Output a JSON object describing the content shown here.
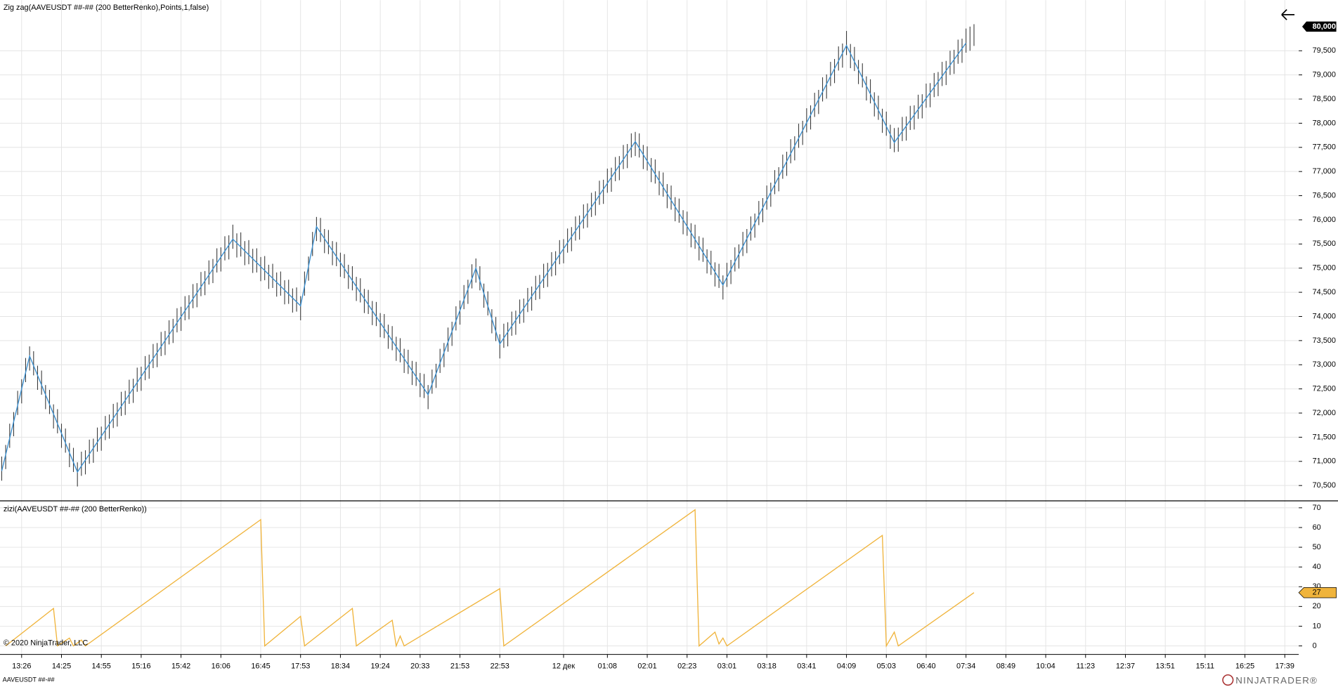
{
  "footer": {
    "copyright": "© 2020 NinjaTrader, LLC",
    "instrument": "AAVEUSDT ##-##",
    "brand": "NINJATRADER®"
  },
  "chart_data": [
    {
      "type": "ohlc",
      "title": "Zig zag(AAVEUSDT ##-## (200 BetterRenko),Points,1,false)",
      "bar_color": "#3a3a3a",
      "high": [
        71100,
        71340,
        71780,
        72020,
        72460,
        72700,
        73140,
        73380,
        73280,
        72980,
        72880,
        72580,
        72480,
        72180,
        72080,
        71780,
        71680,
        71380,
        71280,
        70980,
        71200,
        71230,
        71450,
        71470,
        71700,
        71720,
        71940,
        71970,
        72190,
        72220,
        72440,
        72460,
        72690,
        72710,
        72940,
        72960,
        73180,
        73210,
        73430,
        73450,
        73680,
        73700,
        73920,
        73950,
        74170,
        74200,
        74420,
        74440,
        74670,
        74690,
        74920,
        74940,
        75160,
        75190,
        75410,
        75430,
        75660,
        75680,
        75900,
        75720,
        75740,
        75560,
        75580,
        75400,
        75410,
        75230,
        75250,
        75070,
        75090,
        74910,
        74930,
        74750,
        74760,
        74580,
        74600,
        74420,
        74930,
        75240,
        75750,
        76060,
        76040,
        75810,
        75790,
        75560,
        75540,
        75320,
        75290,
        75070,
        75040,
        74820,
        74790,
        74570,
        74550,
        74320,
        74300,
        74070,
        74050,
        73830,
        73800,
        73580,
        73550,
        73330,
        73310,
        73080,
        73060,
        72830,
        72810,
        72580,
        72900,
        73020,
        73330,
        73450,
        73770,
        73890,
        74210,
        74330,
        74650,
        74760,
        75080,
        75200,
        75040,
        74680,
        74520,
        74150,
        73990,
        73630,
        73850,
        73880,
        74100,
        74120,
        74350,
        74370,
        74590,
        74620,
        74840,
        74860,
        75090,
        75110,
        75330,
        75350,
        75580,
        75600,
        75820,
        75850,
        76070,
        76090,
        76320,
        76340,
        76560,
        76590,
        76810,
        76830,
        77060,
        77080,
        77300,
        77320,
        77550,
        77570,
        77790,
        77820,
        77790,
        77550,
        77520,
        77280,
        77250,
        77010,
        76980,
        76740,
        76710,
        76470,
        76440,
        76200,
        76170,
        75930,
        75900,
        75660,
        75630,
        75390,
        75360,
        75120,
        75090,
        74850,
        75110,
        75170,
        75430,
        75490,
        75750,
        75810,
        76070,
        76130,
        76390,
        76450,
        76710,
        76770,
        77030,
        77090,
        77350,
        77410,
        77670,
        77730,
        77990,
        78050,
        78310,
        78370,
        78630,
        78690,
        78950,
        79010,
        79270,
        79330,
        79590,
        79650,
        79910,
        79640,
        79580,
        79310,
        79240,
        78970,
        78910,
        78640,
        78570,
        78300,
        78240,
        77970,
        77900,
        77910,
        78130,
        78140,
        78360,
        78370,
        78590,
        78600,
        78820,
        78830,
        79040,
        79060,
        79270,
        79290,
        79500,
        79520,
        79730,
        79750,
        79960,
        80000,
        80050
      ],
      "low": [
        70600,
        70840,
        71280,
        71520,
        71960,
        72200,
        72640,
        72880,
        72780,
        72480,
        72380,
        72080,
        71980,
        71680,
        71580,
        71280,
        71180,
        70880,
        70780,
        70480,
        70700,
        70730,
        70950,
        70970,
        71200,
        71220,
        71440,
        71470,
        71690,
        71720,
        71940,
        71960,
        72190,
        72210,
        72440,
        72460,
        72680,
        72710,
        72930,
        72950,
        73180,
        73200,
        73420,
        73450,
        73670,
        73700,
        73920,
        73940,
        74170,
        74190,
        74420,
        74440,
        74660,
        74690,
        74910,
        74930,
        75160,
        75180,
        75400,
        75220,
        75240,
        75060,
        75080,
        74900,
        74910,
        74730,
        74750,
        74570,
        74590,
        74410,
        74430,
        74250,
        74260,
        74080,
        74100,
        73920,
        74430,
        74740,
        75250,
        75560,
        75540,
        75310,
        75290,
        75060,
        75040,
        74820,
        74790,
        74570,
        74540,
        74320,
        74290,
        74070,
        74050,
        73820,
        73800,
        73570,
        73550,
        73330,
        73300,
        73080,
        73050,
        72830,
        72810,
        72580,
        72560,
        72330,
        72310,
        72080,
        72400,
        72520,
        72830,
        72950,
        73270,
        73390,
        73710,
        73830,
        74150,
        74260,
        74580,
        74700,
        74540,
        74180,
        74020,
        73650,
        73490,
        73130,
        73350,
        73380,
        73600,
        73620,
        73850,
        73870,
        74090,
        74120,
        74340,
        74360,
        74590,
        74610,
        74830,
        74850,
        75080,
        75100,
        75320,
        75350,
        75570,
        75590,
        75820,
        75840,
        76060,
        76090,
        76310,
        76330,
        76560,
        76580,
        76800,
        76820,
        77050,
        77070,
        77290,
        77320,
        77290,
        77050,
        77020,
        76780,
        76750,
        76510,
        76480,
        76240,
        76210,
        75970,
        75940,
        75700,
        75670,
        75430,
        75400,
        75160,
        75130,
        74890,
        74860,
        74620,
        74590,
        74350,
        74610,
        74670,
        74930,
        74990,
        75250,
        75310,
        75570,
        75630,
        75890,
        75950,
        76210,
        76270,
        76530,
        76590,
        76850,
        76910,
        77170,
        77230,
        77490,
        77550,
        77810,
        77870,
        78130,
        78190,
        78450,
        78510,
        78770,
        78830,
        79090,
        79150,
        79410,
        79140,
        79080,
        78810,
        78740,
        78470,
        78410,
        78140,
        78070,
        77800,
        77740,
        77470,
        77400,
        77410,
        77630,
        77640,
        77860,
        77870,
        78090,
        78100,
        78320,
        78330,
        78540,
        78560,
        78770,
        78790,
        79000,
        79020,
        79230,
        79250,
        79460,
        79500,
        79600
      ],
      "overlay": {
        "color": "#3a8fd0",
        "x": [
          0,
          7,
          19,
          58,
          75,
          79,
          107,
          119,
          125,
          159,
          181,
          212,
          224,
          242
        ],
        "values": [
          70800,
          73180,
          70780,
          75600,
          74220,
          75860,
          72380,
          75000,
          73430,
          77620,
          74650,
          79610,
          77600,
          79660
        ]
      },
      "ylim": [
        70182,
        80547
      ],
      "yticks": [
        {
          "value": 70500,
          "label": "70,500"
        },
        {
          "value": 71000,
          "label": "71,000"
        },
        {
          "value": 71500,
          "label": "71,500"
        },
        {
          "value": 72000,
          "label": "72,000"
        },
        {
          "value": 72500,
          "label": "72,500"
        },
        {
          "value": 73000,
          "label": "73,000"
        },
        {
          "value": 73500,
          "label": "73,500"
        },
        {
          "value": 74000,
          "label": "74,000"
        },
        {
          "value": 74500,
          "label": "74,500"
        },
        {
          "value": 75000,
          "label": "75,000"
        },
        {
          "value": 75500,
          "label": "75,500"
        },
        {
          "value": 76000,
          "label": "76,000"
        },
        {
          "value": 76500,
          "label": "76,500"
        },
        {
          "value": 77000,
          "label": "77,000"
        },
        {
          "value": 77500,
          "label": "77,500"
        },
        {
          "value": 78000,
          "label": "78,000"
        },
        {
          "value": 78500,
          "label": "78,500"
        },
        {
          "value": 79000,
          "label": "79,000"
        },
        {
          "value": 79500,
          "label": "79,500"
        }
      ],
      "last_price": {
        "value": 80000,
        "label": "80,000"
      },
      "grid": true
    },
    {
      "type": "line",
      "title": "zizi(AAVEUSDT ##-## (200 BetterRenko))",
      "color": "#f0b43c",
      "x": [
        1,
        13,
        14,
        17,
        18,
        20,
        21,
        65,
        66,
        75,
        76,
        88,
        89,
        98,
        99,
        100,
        101,
        125,
        126,
        174,
        175,
        179,
        180,
        181,
        182,
        221,
        222,
        224,
        225,
        244
      ],
      "values": [
        0,
        19,
        0,
        4,
        0,
        3,
        0,
        64,
        0,
        15,
        0,
        19,
        0,
        13,
        0,
        5,
        0,
        29,
        0,
        69,
        0,
        7,
        1,
        4,
        0,
        56,
        0,
        7,
        0,
        27
      ],
      "last_value": 27,
      "ylim": [
        -4.3,
        73.5
      ],
      "yticks": [
        0,
        10,
        20,
        30,
        40,
        50,
        60,
        70
      ],
      "xlim": [
        -0.43,
        325.5
      ],
      "xticks": [
        {
          "value": 5,
          "label": "13:26"
        },
        {
          "value": 15,
          "label": "14:25"
        },
        {
          "value": 25,
          "label": "14:55"
        },
        {
          "value": 35,
          "label": "15:16"
        },
        {
          "value": 45,
          "label": "15:42"
        },
        {
          "value": 55,
          "label": "16:06"
        },
        {
          "value": 65,
          "label": "16:45"
        },
        {
          "value": 75,
          "label": "17:53"
        },
        {
          "value": 85,
          "label": "18:34"
        },
        {
          "value": 95,
          "label": "19:24"
        },
        {
          "value": 105,
          "label": "20:33"
        },
        {
          "value": 115,
          "label": "21:53"
        },
        {
          "value": 125,
          "label": "22:53"
        },
        {
          "value": 141,
          "label": "12 дек"
        },
        {
          "value": 152,
          "label": "01:08"
        },
        {
          "value": 162,
          "label": "02:01"
        },
        {
          "value": 172,
          "label": "02:23"
        },
        {
          "value": 182,
          "label": "03:01"
        },
        {
          "value": 192,
          "label": "03:18"
        },
        {
          "value": 202,
          "label": "03:41"
        },
        {
          "value": 212,
          "label": "04:09"
        },
        {
          "value": 222,
          "label": "05:03"
        },
        {
          "value": 232,
          "label": "06:40"
        },
        {
          "value": 242,
          "label": "07:34"
        },
        {
          "value": 252,
          "label": "08:49"
        },
        {
          "value": 262,
          "label": "10:04"
        },
        {
          "value": 272,
          "label": "11:23"
        },
        {
          "value": 282,
          "label": "12:37"
        },
        {
          "value": 292,
          "label": "13:51"
        },
        {
          "value": 302,
          "label": "15:11"
        },
        {
          "value": 312,
          "label": "16:25"
        },
        {
          "value": 322,
          "label": "17:39"
        }
      ],
      "grid": true
    }
  ]
}
